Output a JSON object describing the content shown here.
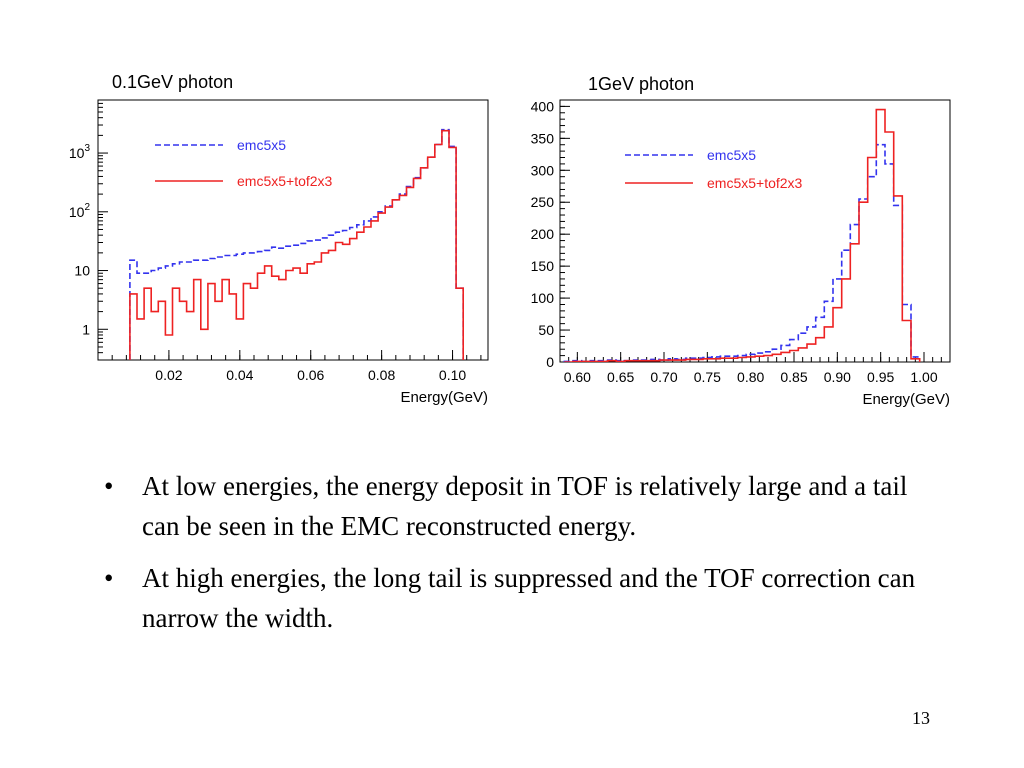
{
  "slide": {
    "bullets": [
      "At low energies, the energy deposit in TOF is relatively large and a tail can be seen in the EMC reconstructed energy.",
      "At high energies, the long tail is suppressed and the TOF correction can narrow the width."
    ],
    "bullet_glyph": "•",
    "page_number": "13"
  },
  "chart_data": [
    {
      "type": "line",
      "title": "0.1GeV photon",
      "xlabel": "Energy(GeV)",
      "ylabel": "",
      "xlim": [
        0.0,
        0.11
      ],
      "ylim": [
        0.3,
        8000
      ],
      "yscale": "log",
      "grid": false,
      "legend_position": "top-left",
      "xticks": [
        0.02,
        0.04,
        0.06,
        0.08,
        0.1
      ],
      "xtick_labels": [
        "0.02",
        "0.04",
        "0.06",
        "0.08",
        "0.10"
      ],
      "yticks": [
        {
          "value": 1,
          "base": "1",
          "exp": ""
        },
        {
          "value": 10,
          "base": "10",
          "exp": ""
        },
        {
          "value": 100,
          "base": "10",
          "exp": "2"
        },
        {
          "value": 1000,
          "base": "10",
          "exp": "3"
        }
      ],
      "series": [
        {
          "name": "emc5x5",
          "color": "#3333ee",
          "dash": "dashed",
          "x": [
            0.01,
            0.012,
            0.014,
            0.016,
            0.018,
            0.02,
            0.022,
            0.024,
            0.026,
            0.028,
            0.03,
            0.032,
            0.034,
            0.036,
            0.038,
            0.04,
            0.042,
            0.044,
            0.046,
            0.048,
            0.05,
            0.052,
            0.054,
            0.056,
            0.058,
            0.06,
            0.062,
            0.064,
            0.066,
            0.068,
            0.07,
            0.072,
            0.074,
            0.076,
            0.078,
            0.08,
            0.082,
            0.084,
            0.086,
            0.088,
            0.09,
            0.092,
            0.094,
            0.096,
            0.098,
            0.1,
            0.102
          ],
          "y": [
            15,
            9,
            9,
            10,
            11,
            12,
            13,
            14,
            14,
            15,
            15,
            16,
            17,
            18,
            18,
            19,
            20,
            20,
            21,
            22,
            25,
            24,
            26,
            27,
            29,
            32,
            33,
            36,
            40,
            45,
            48,
            54,
            60,
            70,
            82,
            100,
            125,
            160,
            200,
            270,
            380,
            560,
            850,
            1400,
            2500,
            1300,
            5
          ]
        },
        {
          "name": "emc5x5+tof2x3",
          "color": "#ee2222",
          "dash": "solid",
          "x": [
            0.01,
            0.012,
            0.014,
            0.016,
            0.018,
            0.02,
            0.022,
            0.024,
            0.026,
            0.028,
            0.03,
            0.032,
            0.034,
            0.036,
            0.038,
            0.04,
            0.042,
            0.044,
            0.046,
            0.048,
            0.05,
            0.052,
            0.054,
            0.056,
            0.058,
            0.06,
            0.062,
            0.064,
            0.066,
            0.068,
            0.07,
            0.072,
            0.074,
            0.076,
            0.078,
            0.08,
            0.082,
            0.084,
            0.086,
            0.088,
            0.09,
            0.092,
            0.094,
            0.096,
            0.098,
            0.1,
            0.102
          ],
          "y": [
            4,
            1.5,
            5,
            2,
            3,
            0.8,
            5,
            3,
            2,
            7,
            1,
            6,
            3,
            7,
            4,
            1.5,
            6,
            5,
            9,
            12,
            8,
            7,
            10,
            11,
            9,
            13,
            14,
            20,
            22,
            30,
            28,
            35,
            45,
            55,
            70,
            95,
            120,
            160,
            190,
            260,
            370,
            560,
            850,
            1400,
            2400,
            1250,
            5
          ]
        }
      ]
    },
    {
      "type": "line",
      "title": "1GeV photon",
      "xlabel": "Energy(GeV)",
      "ylabel": "",
      "xlim": [
        0.58,
        1.03
      ],
      "ylim": [
        0,
        410
      ],
      "grid": false,
      "legend_position": "top-left",
      "xticks": [
        0.6,
        0.65,
        0.7,
        0.75,
        0.8,
        0.85,
        0.9,
        0.95,
        1.0
      ],
      "xtick_labels": [
        "0.60",
        "0.65",
        "0.70",
        "0.75",
        "0.80",
        "0.85",
        "0.90",
        "0.95",
        "1.00"
      ],
      "yticks": [
        0,
        50,
        100,
        150,
        200,
        250,
        300,
        350,
        400
      ],
      "ytick_labels": [
        "0",
        "50",
        "100",
        "150",
        "200",
        "250",
        "300",
        "350",
        "400"
      ],
      "series": [
        {
          "name": "emc5x5",
          "color": "#3333ee",
          "dash": "dashed",
          "x": [
            0.59,
            0.6,
            0.61,
            0.62,
            0.63,
            0.64,
            0.65,
            0.66,
            0.67,
            0.68,
            0.69,
            0.7,
            0.71,
            0.72,
            0.73,
            0.74,
            0.75,
            0.76,
            0.77,
            0.78,
            0.79,
            0.8,
            0.81,
            0.82,
            0.83,
            0.84,
            0.85,
            0.86,
            0.87,
            0.88,
            0.89,
            0.9,
            0.91,
            0.92,
            0.93,
            0.94,
            0.95,
            0.96,
            0.97,
            0.98,
            0.99
          ],
          "y": [
            1,
            2,
            1,
            2,
            2,
            3,
            2,
            2,
            3,
            3,
            4,
            3,
            5,
            4,
            6,
            6,
            7,
            8,
            9,
            9,
            10,
            12,
            14,
            16,
            20,
            26,
            35,
            45,
            55,
            70,
            95,
            130,
            175,
            215,
            255,
            290,
            340,
            310,
            245,
            90,
            8
          ]
        },
        {
          "name": "emc5x5+tof2x3",
          "color": "#ee2222",
          "dash": "solid",
          "x": [
            0.59,
            0.6,
            0.61,
            0.62,
            0.63,
            0.64,
            0.65,
            0.66,
            0.67,
            0.68,
            0.69,
            0.7,
            0.71,
            0.72,
            0.73,
            0.74,
            0.75,
            0.76,
            0.77,
            0.78,
            0.79,
            0.8,
            0.81,
            0.82,
            0.83,
            0.84,
            0.85,
            0.86,
            0.87,
            0.88,
            0.89,
            0.9,
            0.91,
            0.92,
            0.93,
            0.94,
            0.95,
            0.96,
            0.97,
            0.98,
            0.99
          ],
          "y": [
            0,
            1,
            1,
            1,
            1,
            2,
            1,
            2,
            2,
            2,
            2,
            3,
            3,
            3,
            4,
            4,
            5,
            5,
            6,
            6,
            7,
            8,
            9,
            10,
            12,
            15,
            18,
            22,
            28,
            38,
            55,
            85,
            130,
            185,
            250,
            320,
            395,
            360,
            260,
            65,
            5
          ]
        }
      ]
    }
  ]
}
